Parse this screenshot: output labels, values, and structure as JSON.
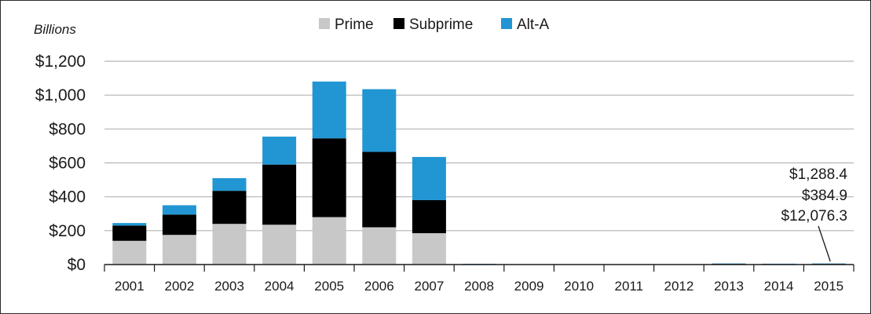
{
  "chart_data": {
    "type": "bar",
    "stacked": true,
    "ylabel": "Billions",
    "xlabel": "",
    "ylim": [
      0,
      1200
    ],
    "yticks": [
      0,
      200,
      400,
      600,
      800,
      1000,
      1200
    ],
    "ytick_labels": [
      "$0",
      "$200",
      "$400",
      "$600",
      "$800",
      "$1,000",
      "$1,200"
    ],
    "categories": [
      "2001",
      "2002",
      "2003",
      "2004",
      "2005",
      "2006",
      "2007",
      "2008",
      "2009",
      "2010",
      "2011",
      "2012",
      "2013",
      "2014",
      "2015"
    ],
    "series": [
      {
        "name": "Prime",
        "color": "#c8c8c8",
        "values": [
          140,
          175,
          240,
          235,
          280,
          220,
          185,
          2,
          0,
          0,
          0,
          1,
          4,
          3,
          4
        ]
      },
      {
        "name": "Subprime",
        "color": "#000000",
        "values": [
          90,
          120,
          195,
          355,
          465,
          445,
          195,
          1,
          0,
          0,
          0,
          0,
          1,
          1,
          1
        ]
      },
      {
        "name": "Alt-A",
        "color": "#2196d3",
        "values": [
          15,
          55,
          75,
          165,
          335,
          370,
          255,
          1,
          0,
          0,
          0,
          0,
          1,
          1,
          1
        ]
      }
    ],
    "grid": "horizontal",
    "legend_position": "top-center",
    "annotations": [
      {
        "category": "2015",
        "lines": [
          "$1,288.4",
          "$384.9",
          "$12,076.3"
        ]
      }
    ]
  }
}
